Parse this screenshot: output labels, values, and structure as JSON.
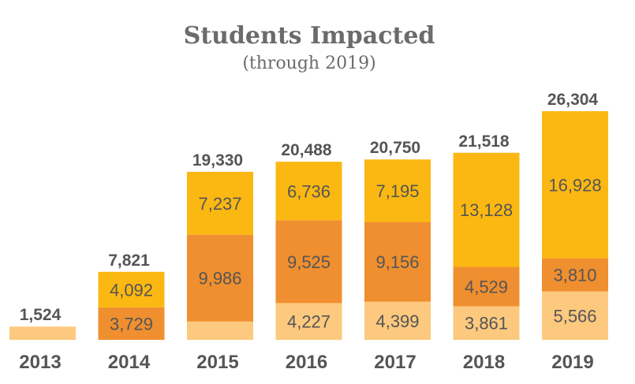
{
  "chart_data": {
    "type": "bar",
    "stacked": true,
    "title": "Students Impacted",
    "subtitle": "(through 2019)",
    "categories": [
      "2013",
      "2014",
      "2015",
      "2016",
      "2017",
      "2018",
      "2019"
    ],
    "series": [
      {
        "color": "#fcc97e",
        "values": [
          1524,
          0,
          2107,
          4227,
          4399,
          3861,
          5566
        ],
        "labels": [
          "",
          "",
          "",
          "4,227",
          "4,399",
          "3,861",
          "5,566"
        ]
      },
      {
        "color": "#f08f2f",
        "values": [
          0,
          3729,
          9986,
          9525,
          9156,
          4529,
          3810
        ],
        "labels": [
          "",
          "3,729",
          "9,986",
          "9,525",
          "9,156",
          "4,529",
          "3,810"
        ]
      },
      {
        "color": "#fbb812",
        "values": [
          0,
          4092,
          7237,
          6736,
          7195,
          13128,
          16928
        ],
        "labels": [
          "",
          "4,092",
          "7,237",
          "6,736",
          "7,195",
          "13,128",
          "16,928"
        ]
      }
    ],
    "totals": [
      1524,
      7821,
      19330,
      20488,
      20750,
      21518,
      26304
    ],
    "total_labels": [
      "1,524",
      "7,821",
      "19,330",
      "20,488",
      "20,750",
      "21,518",
      "26,304"
    ],
    "ylim": [
      0,
      26304
    ],
    "grid": false,
    "legend": "none",
    "xlabel": "",
    "ylabel": ""
  }
}
